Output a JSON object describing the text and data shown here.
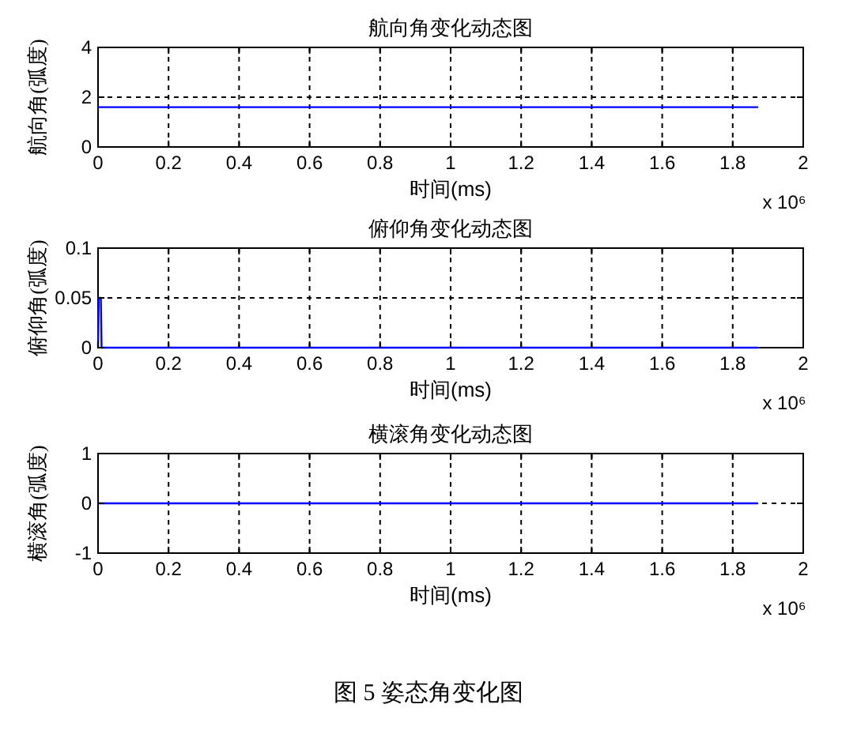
{
  "chart_data": [
    {
      "type": "line",
      "title": "航向角变化动态图",
      "xlabel": "时间(ms)",
      "ylabel": "航向角(弧度)",
      "annotations": [
        "x 10⁶"
      ],
      "grid": true,
      "xlim": [
        0,
        2
      ],
      "xticks": [
        0,
        0.2,
        0.4,
        0.6,
        0.8,
        1,
        1.2,
        1.4,
        1.6,
        1.8,
        2
      ],
      "ylim": [
        0,
        4
      ],
      "yticks": [
        0,
        2,
        4
      ],
      "series": [
        {
          "color": "#0000ff",
          "x": [
            0,
            1.87
          ],
          "values": [
            1.6,
            1.6
          ]
        }
      ]
    },
    {
      "type": "line",
      "title": "俯仰角变化动态图",
      "xlabel": "时间(ms)",
      "ylabel": "俯仰角(弧度)",
      "annotations": [
        "x 10⁶"
      ],
      "grid": true,
      "xlim": [
        0,
        2
      ],
      "xticks": [
        0,
        0.2,
        0.4,
        0.6,
        0.8,
        1,
        1.2,
        1.4,
        1.6,
        1.8,
        2
      ],
      "ylim": [
        0,
        0.1
      ],
      "yticks": [
        0,
        0.05,
        0.1
      ],
      "series": [
        {
          "color": "#0000ff",
          "x": [
            0,
            0.002,
            0.008,
            0.01,
            1.87
          ],
          "values": [
            0,
            0.05,
            0.05,
            0,
            0
          ]
        }
      ]
    },
    {
      "type": "line",
      "title": "横滚角变化动态图",
      "xlabel": "时间(ms)",
      "ylabel": "横滚角(弧度)",
      "annotations": [
        "x 10⁶",
        "图 5  姿态角变化图"
      ],
      "grid": true,
      "xlim": [
        0,
        2
      ],
      "xticks": [
        0,
        0.2,
        0.4,
        0.6,
        0.8,
        1,
        1.2,
        1.4,
        1.6,
        1.8,
        2
      ],
      "ylim": [
        -1,
        1
      ],
      "yticks": [
        -1,
        0,
        1
      ],
      "series": [
        {
          "color": "#0000ff",
          "x": [
            0,
            1.87
          ],
          "values": [
            0,
            0
          ]
        }
      ]
    }
  ]
}
